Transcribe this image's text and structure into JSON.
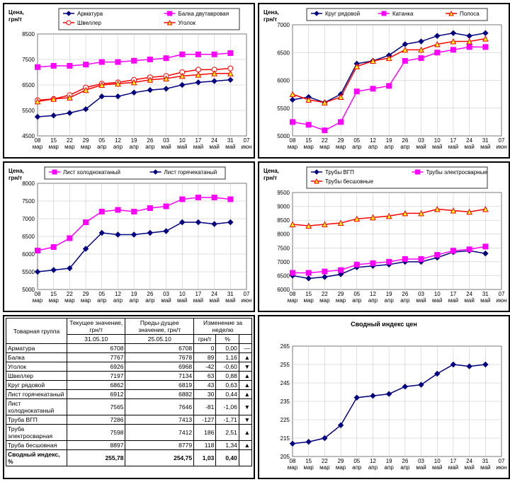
{
  "common": {
    "y_label_line1": "Цена,",
    "y_label_line2": "грн/т",
    "x_labels": [
      "08",
      "15",
      "22",
      "29",
      "05",
      "12",
      "19",
      "26",
      "03",
      "10",
      "17",
      "24",
      "31",
      "07"
    ],
    "x_months": [
      "мар",
      "мар",
      "мар",
      "мар",
      "апр",
      "апр",
      "апр",
      "апр",
      "май",
      "май",
      "май",
      "май",
      "май",
      "июн"
    ],
    "grid_color": "#c0c0c0",
    "bg_color": "#ffffff",
    "tick_fontsize": 8
  },
  "colors": {
    "blue": "#000080",
    "magenta": "#ff00ff",
    "red": "#ff0000",
    "yellow_fill": "#ffff00"
  },
  "chart1": {
    "ylim": [
      4500,
      8500
    ],
    "ystep": 1000,
    "series": [
      {
        "name": "Арматура",
        "color": "#000080",
        "marker": "diamond",
        "fill": "#000080",
        "data": [
          5250,
          5300,
          5400,
          5550,
          6050,
          6050,
          6200,
          6300,
          6350,
          6500,
          6600,
          6650,
          6700
        ]
      },
      {
        "name": "Балка двутавровая",
        "color": "#ff00ff",
        "marker": "square",
        "fill": "#ff00ff",
        "data": [
          7200,
          7250,
          7250,
          7300,
          7400,
          7400,
          7450,
          7500,
          7550,
          7700,
          7700,
          7700,
          7750
        ]
      },
      {
        "name": "Швеллер",
        "color": "#ff0000",
        "marker": "circle",
        "fill": "#ffffff",
        "data": [
          5900,
          5950,
          6100,
          6400,
          6550,
          6600,
          6700,
          6800,
          6850,
          7000,
          7100,
          7100,
          7150
        ]
      },
      {
        "name": "Уголок",
        "color": "#ff0000",
        "marker": "triangle",
        "fill": "#ffff00",
        "data": [
          5850,
          5950,
          6000,
          6300,
          6500,
          6550,
          6600,
          6700,
          6750,
          6850,
          6900,
          6950,
          6950
        ]
      }
    ]
  },
  "chart2": {
    "ylim": [
      5000,
      7000
    ],
    "ystep": 500,
    "series": [
      {
        "name": "Круг рядовой",
        "color": "#000080",
        "marker": "diamond",
        "fill": "#000080",
        "data": [
          5650,
          5700,
          5600,
          5750,
          6300,
          6350,
          6450,
          6650,
          6700,
          6800,
          6850,
          6800,
          6850
        ]
      },
      {
        "name": "Катанка",
        "color": "#ff00ff",
        "marker": "square",
        "fill": "#ff00ff",
        "data": [
          5250,
          5200,
          5100,
          5250,
          5800,
          5850,
          5900,
          6350,
          6400,
          6500,
          6550,
          6600,
          6600
        ]
      },
      {
        "name": "Полоса",
        "color": "#ff0000",
        "marker": "triangle",
        "fill": "#ffff00",
        "data": [
          5750,
          5650,
          5600,
          5700,
          6250,
          6350,
          6400,
          6550,
          6550,
          6650,
          6700,
          6700,
          6750
        ]
      }
    ]
  },
  "chart3": {
    "ylim": [
      5000,
      8000
    ],
    "ystep": 500,
    "series": [
      {
        "name": "Лист холоднокатаный",
        "color": "#ff00ff",
        "marker": "square",
        "fill": "#ff00ff",
        "data": [
          6100,
          6200,
          6450,
          6900,
          7200,
          7250,
          7200,
          7300,
          7350,
          7550,
          7600,
          7600,
          7550
        ]
      },
      {
        "name": "Лист горячекатаный",
        "color": "#000080",
        "marker": "diamond",
        "fill": "#000080",
        "data": [
          5500,
          5550,
          5600,
          6150,
          6600,
          6550,
          6550,
          6600,
          6650,
          6900,
          6900,
          6850,
          6900
        ]
      }
    ]
  },
  "chart4": {
    "ylim": [
      6000,
      9500
    ],
    "ystep": 500,
    "series": [
      {
        "name": "Трубы ВГП",
        "color": "#000080",
        "marker": "diamond",
        "fill": "#000080",
        "data": [
          6500,
          6400,
          6450,
          6550,
          6800,
          6850,
          6900,
          7000,
          7000,
          7150,
          7350,
          7400,
          7300
        ]
      },
      {
        "name": "Трубы электросварные",
        "color": "#ff00ff",
        "marker": "square",
        "fill": "#ff00ff",
        "data": [
          6600,
          6600,
          6650,
          6700,
          6900,
          6950,
          7000,
          7100,
          7100,
          7250,
          7400,
          7450,
          7550
        ]
      },
      {
        "name": "Трубы бесшовные",
        "color": "#ff0000",
        "marker": "triangle",
        "fill": "#ffff00",
        "data": [
          8350,
          8300,
          8350,
          8400,
          8550,
          8600,
          8650,
          8750,
          8750,
          8900,
          8850,
          8800,
          8900
        ]
      }
    ]
  },
  "chart5": {
    "title": "Сводный индекс цен",
    "ylim": [
      205,
      265
    ],
    "ystep": 10,
    "series": [
      {
        "name": "Индекс",
        "color": "#000080",
        "marker": "diamond",
        "fill": "#000080",
        "data": [
          212,
          213,
          215,
          222,
          237,
          238,
          239,
          243,
          244,
          250,
          255,
          254,
          255
        ]
      }
    ]
  },
  "table": {
    "headers": {
      "group": "Товарная группа",
      "current": "Текущее значение, грн/т",
      "current_date": "31.05.10",
      "prev": "Преды-дущее значение, грн/т",
      "prev_date": "25.05.10",
      "change": "Изменение за неделю",
      "change_abs": "грн/т",
      "change_pct": "%"
    },
    "rows": [
      {
        "name": "Арматура",
        "cur": 6708,
        "prev": 6708,
        "d": 0,
        "pct": "0,00",
        "dir": "flat"
      },
      {
        "name": "Балка",
        "cur": 7767,
        "prev": 7678,
        "d": 89,
        "pct": "1,16",
        "dir": "up"
      },
      {
        "name": "Уголок",
        "cur": 6926,
        "prev": 6968,
        "d": -42,
        "pct": "-0,60",
        "dir": "down"
      },
      {
        "name": "Швеллер",
        "cur": 7197,
        "prev": 7134,
        "d": 63,
        "pct": "0,88",
        "dir": "up"
      },
      {
        "name": "Круг рядовой",
        "cur": 6862,
        "prev": 6819,
        "d": 43,
        "pct": "0,63",
        "dir": "up"
      },
      {
        "name": "Лист горячекатаный",
        "cur": 6912,
        "prev": 6882,
        "d": 30,
        "pct": "0,44",
        "dir": "up"
      },
      {
        "name": "Лист холоднокатаный",
        "cur": 7565,
        "prev": 7646,
        "d": -81,
        "pct": "-1,06",
        "dir": "down"
      },
      {
        "name": "Труба ВГП",
        "cur": 7286,
        "prev": 7413,
        "d": -127,
        "pct": "-1,71",
        "dir": "down"
      },
      {
        "name": "Труба электросварная",
        "cur": 7598,
        "prev": 7412,
        "d": 186,
        "pct": "2,51",
        "dir": "up"
      },
      {
        "name": "Труба бесшовная",
        "cur": 8897,
        "prev": 8779,
        "d": 118,
        "pct": "1,34",
        "dir": "up"
      }
    ],
    "summary": {
      "name": "Сводный индекс, %",
      "cur": "255,78",
      "prev": "254,75",
      "d": "1,03",
      "pct": "0,40"
    }
  }
}
